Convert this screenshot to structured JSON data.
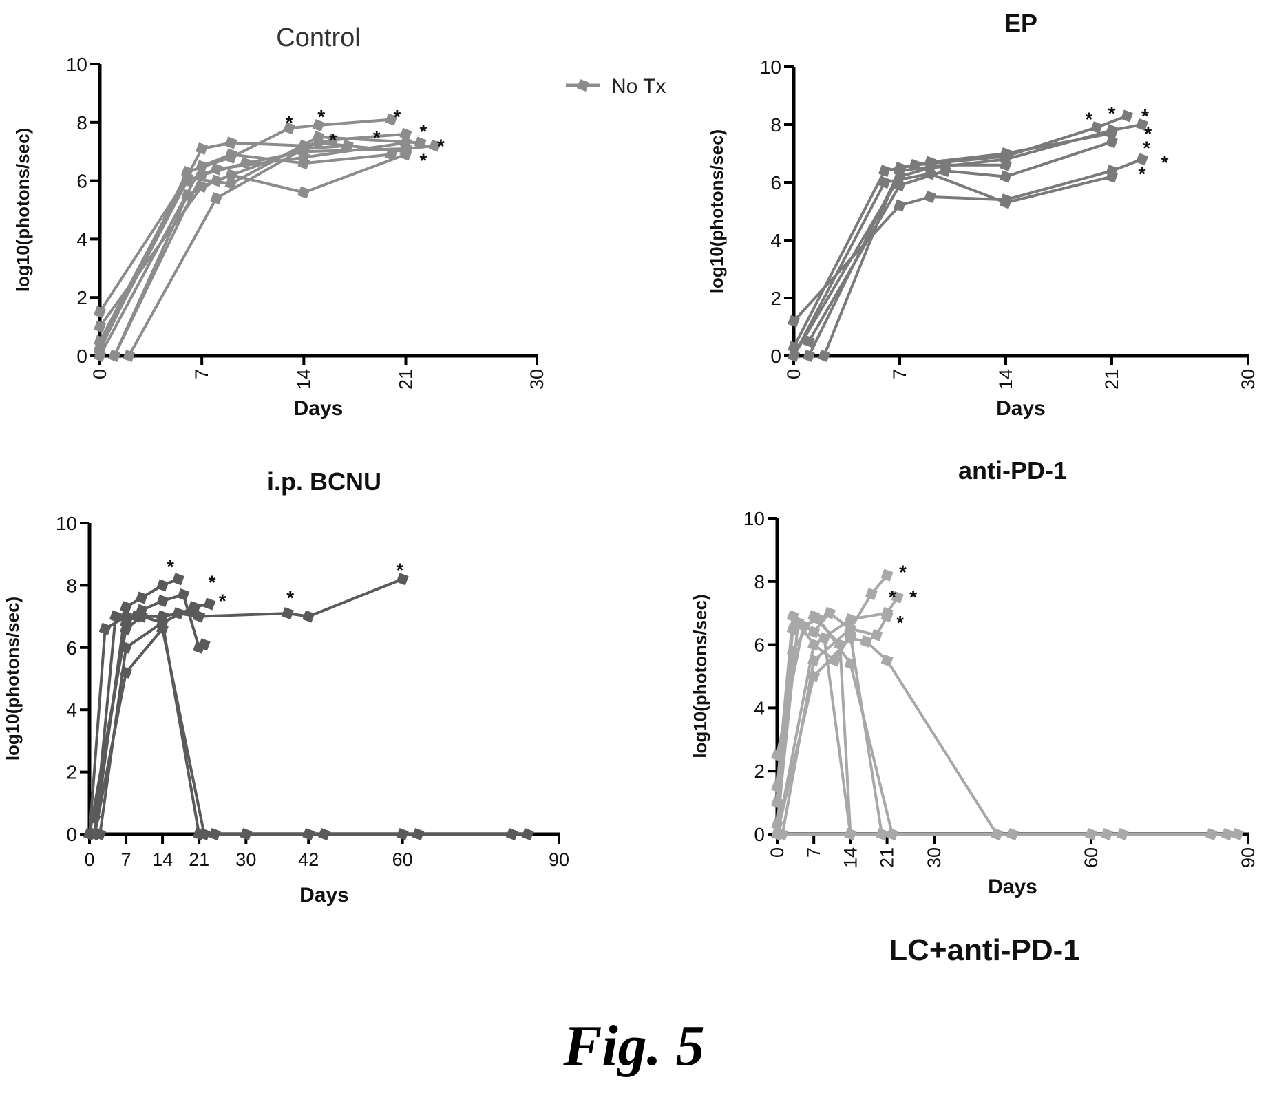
{
  "figure_caption": "Fig. 5",
  "panel_footer": "LC+anti-PD-1",
  "chart_data": [
    {
      "id": "control",
      "type": "line",
      "title": "Control",
      "xlabel": "Days",
      "ylabel": "log10(photons/sec)",
      "xlim": [
        0,
        30
      ],
      "ylim": [
        0,
        10
      ],
      "xticks": [
        0,
        7,
        14,
        21,
        30
      ],
      "xtick_labels": [
        "0",
        "7",
        "14",
        "21",
        "30"
      ],
      "yticks": [
        0,
        2,
        4,
        6,
        8,
        10
      ],
      "ytick_labels": [
        "0",
        "2",
        "4",
        "6",
        "8",
        "10"
      ],
      "xtick_rotated": true,
      "color": "#8c8c8c",
      "legend": {
        "label": "No Tx",
        "position": "top-right"
      },
      "series": [
        {
          "x": [
            0,
            6,
            9,
            13,
            15,
            20
          ],
          "y": [
            0.2,
            6.3,
            6.8,
            7.8,
            7.9,
            8.1
          ]
        },
        {
          "x": [
            0,
            7,
            9,
            14,
            16,
            21
          ],
          "y": [
            0.5,
            7.1,
            7.3,
            7.2,
            7.4,
            7.6
          ]
        },
        {
          "x": [
            0,
            6,
            8,
            14,
            21
          ],
          "y": [
            0.3,
            6.0,
            6.4,
            6.8,
            7.3
          ]
        },
        {
          "x": [
            1,
            7,
            10,
            14,
            21,
            23
          ],
          "y": [
            0.0,
            6.2,
            6.6,
            7.0,
            7.1,
            7.2
          ]
        },
        {
          "x": [
            0,
            7,
            9,
            14,
            21
          ],
          "y": [
            1.0,
            5.8,
            6.2,
            5.6,
            6.9
          ]
        },
        {
          "x": [
            1,
            6,
            8,
            15,
            21
          ],
          "y": [
            0.0,
            5.5,
            6.0,
            7.3,
            7.0
          ]
        },
        {
          "x": [
            0,
            7,
            9,
            14,
            20
          ],
          "y": [
            0.0,
            6.5,
            6.9,
            6.6,
            6.9
          ]
        },
        {
          "x": [
            2,
            8,
            14,
            17
          ],
          "y": [
            0.0,
            5.4,
            7.1,
            7.2
          ]
        },
        {
          "x": [
            0,
            6,
            9,
            15,
            22
          ],
          "y": [
            1.5,
            6.1,
            5.9,
            7.5,
            7.3
          ]
        }
      ],
      "asterisks": [
        [
          13,
          8.1
        ],
        [
          15.2,
          8.3
        ],
        [
          16,
          7.5
        ],
        [
          19,
          7.6
        ],
        [
          20.4,
          8.3
        ],
        [
          22.2,
          7.8
        ],
        [
          23.4,
          7.3
        ],
        [
          22.2,
          6.8
        ]
      ]
    },
    {
      "id": "ep",
      "type": "line",
      "title": "EP",
      "xlabel": "Days",
      "ylabel": "log10(photons/sec)",
      "xlim": [
        0,
        30
      ],
      "ylim": [
        0,
        10
      ],
      "xticks": [
        0,
        7,
        14,
        21,
        30
      ],
      "xtick_labels": [
        "0",
        "7",
        "14",
        "21",
        "30"
      ],
      "yticks": [
        0,
        2,
        4,
        6,
        8,
        10
      ],
      "ytick_labels": [
        "0",
        "2",
        "4",
        "6",
        "8",
        "10"
      ],
      "xtick_rotated": true,
      "color": "#7a7a7a",
      "series": [
        {
          "x": [
            0,
            6,
            8,
            14,
            20,
            22
          ],
          "y": [
            0.3,
            6.4,
            6.6,
            6.9,
            7.9,
            8.3
          ]
        },
        {
          "x": [
            0,
            7,
            9,
            14,
            21,
            23
          ],
          "y": [
            0.0,
            6.2,
            6.5,
            6.8,
            7.8,
            8.0
          ]
        },
        {
          "x": [
            1,
            7,
            10,
            14,
            21
          ],
          "y": [
            0.5,
            5.9,
            6.4,
            6.2,
            7.4
          ]
        },
        {
          "x": [
            0,
            7,
            9,
            14,
            21,
            23
          ],
          "y": [
            1.2,
            5.2,
            5.5,
            5.4,
            6.4,
            6.8
          ]
        },
        {
          "x": [
            0,
            6,
            9,
            14,
            21
          ],
          "y": [
            0.0,
            6.0,
            6.3,
            5.3,
            6.2
          ]
        },
        {
          "x": [
            2,
            7,
            9,
            14,
            21
          ],
          "y": [
            0.0,
            6.5,
            6.7,
            7.0,
            7.7
          ]
        },
        {
          "x": [
            1,
            7,
            10,
            14
          ],
          "y": [
            0.0,
            6.4,
            6.6,
            6.6
          ]
        }
      ],
      "asterisks": [
        [
          19.5,
          8.3
        ],
        [
          21,
          8.5
        ],
        [
          23.2,
          8.4
        ],
        [
          23.4,
          7.8
        ],
        [
          23.3,
          7.3
        ],
        [
          23.0,
          6.4
        ],
        [
          24.5,
          6.8
        ]
      ]
    },
    {
      "id": "ip_bcnu",
      "type": "line",
      "title": "i.p. BCNU",
      "xlabel": "Days",
      "ylabel": "log10(photons/sec)",
      "xlim": [
        0,
        90
      ],
      "ylim": [
        0,
        10
      ],
      "xticks": [
        0,
        7,
        14,
        21,
        30,
        42,
        60,
        90
      ],
      "xtick_labels": [
        "0",
        "7",
        "14",
        "21",
        "30",
        "42",
        "60",
        "90"
      ],
      "yticks": [
        0,
        2,
        4,
        6,
        8,
        10
      ],
      "ytick_labels": [
        "0",
        "2",
        "4",
        "6",
        "8",
        "10"
      ],
      "xtick_rotated": false,
      "color": "#5a5a5a",
      "series": [
        {
          "x": [
            0,
            3,
            7,
            10,
            14,
            17,
            21,
            38,
            42,
            60
          ],
          "y": [
            0.0,
            6.6,
            7.0,
            7.0,
            7.0,
            7.1,
            7.0,
            7.1,
            7.0,
            8.2
          ]
        },
        {
          "x": [
            1,
            7,
            10,
            14,
            17
          ],
          "y": [
            0.0,
            7.3,
            7.6,
            8.0,
            8.2
          ]
        },
        {
          "x": [
            1,
            7,
            10,
            14,
            18,
            21,
            22
          ],
          "y": [
            0.5,
            6.8,
            7.2,
            7.5,
            7.7,
            6.0,
            6.1
          ]
        },
        {
          "x": [
            0,
            7,
            10,
            14,
            20,
            23
          ],
          "y": [
            0.0,
            6.6,
            7.0,
            6.8,
            7.3,
            7.4
          ]
        },
        {
          "x": [
            1,
            5,
            9,
            14,
            20
          ],
          "y": [
            0.0,
            7.0,
            7.0,
            7.0,
            7.2
          ]
        },
        {
          "x": [
            2,
            7,
            14,
            21
          ],
          "y": [
            0.0,
            6.0,
            6.8,
            0.0
          ]
        },
        {
          "x": [
            1,
            7,
            14,
            22
          ],
          "y": [
            0.0,
            5.2,
            6.6,
            0.0
          ]
        },
        {
          "x": [
            21,
            24,
            30,
            42,
            45,
            60,
            63,
            81,
            84
          ],
          "y": [
            0,
            0,
            0,
            0,
            0,
            0,
            0,
            0,
            0
          ]
        }
      ],
      "asterisks": [
        [
          15.5,
          8.7
        ],
        [
          23.5,
          8.2
        ],
        [
          25.5,
          7.6
        ],
        [
          38.5,
          7.7
        ],
        [
          59.5,
          8.6
        ]
      ]
    },
    {
      "id": "anti_pd1",
      "type": "line",
      "title": "anti-PD-1",
      "xlabel": "Days",
      "ylabel": "log10(photons/sec)",
      "xlim": [
        0,
        90
      ],
      "ylim": [
        0,
        10
      ],
      "xticks": [
        0,
        7,
        14,
        21,
        30,
        60,
        90
      ],
      "xtick_labels": [
        "0",
        "7",
        "14",
        "21",
        "30",
        "60",
        "90"
      ],
      "yticks": [
        0,
        2,
        4,
        6,
        8,
        10
      ],
      "ytick_labels": [
        "0",
        "2",
        "4",
        "6",
        "8",
        "10"
      ],
      "xtick_rotated": true,
      "color": "#a8a8a8",
      "series": [
        {
          "x": [
            0,
            3,
            7,
            10,
            14,
            18,
            21
          ],
          "y": [
            1.5,
            6.9,
            6.4,
            7.0,
            6.5,
            7.6,
            8.2
          ]
        },
        {
          "x": [
            0,
            4,
            7,
            14,
            21,
            23
          ],
          "y": [
            0.3,
            6.7,
            6.0,
            6.8,
            7.0,
            7.5
          ]
        },
        {
          "x": [
            1,
            7,
            14,
            19,
            21
          ],
          "y": [
            0.0,
            5.5,
            6.5,
            6.3,
            6.9
          ]
        },
        {
          "x": [
            0,
            5,
            9,
            14
          ],
          "y": [
            2.5,
            6.6,
            6.2,
            0.0
          ]
        },
        {
          "x": [
            0,
            7,
            11,
            14,
            20
          ],
          "y": [
            0.0,
            6.0,
            5.5,
            6.3,
            0.0
          ]
        },
        {
          "x": [
            0,
            3,
            8,
            14,
            22
          ],
          "y": [
            1.0,
            6.5,
            6.8,
            5.4,
            0.0
          ]
        },
        {
          "x": [
            0,
            7,
            14,
            17,
            21,
            42
          ],
          "y": [
            0.0,
            5.0,
            6.2,
            6.1,
            5.5,
            0.0
          ]
        },
        {
          "x": [
            0,
            3,
            7,
            12,
            14
          ],
          "y": [
            0.0,
            5.8,
            6.9,
            6.0,
            0.0
          ]
        },
        {
          "x": [
            0,
            14,
            20,
            22,
            42,
            45,
            60,
            63,
            66,
            83,
            86,
            88
          ],
          "y": [
            0,
            0,
            0,
            0,
            0,
            0,
            0,
            0,
            0,
            0,
            0,
            0
          ]
        }
      ],
      "asterisks": [
        [
          24,
          8.4
        ],
        [
          22,
          7.6
        ],
        [
          26,
          7.6
        ],
        [
          23.5,
          6.8
        ]
      ]
    }
  ]
}
